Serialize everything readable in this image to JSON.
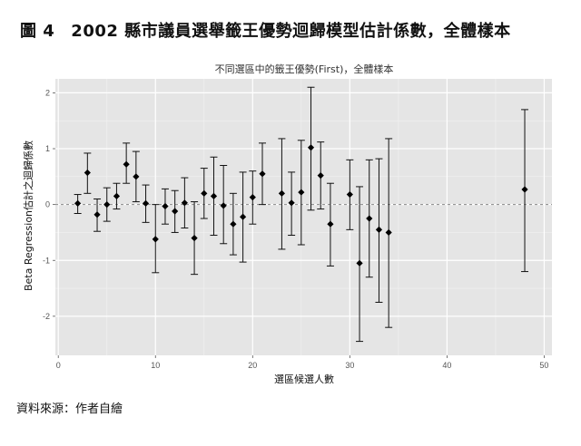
{
  "figure": {
    "number": "圖 4",
    "title": "2002 縣市議員選舉籤王優勢迴歸模型估計係數，全體樣本",
    "source": "資料來源：作者自繪"
  },
  "chart_data": {
    "type": "scatter",
    "title": "不同選區中的籤王優勢(First)，全體樣本",
    "xlabel": "選區候選人數",
    "ylabel": "Beta Regression估計之迴歸係數",
    "xlim": [
      -0.3,
      50.8
    ],
    "ylim": [
      -2.7,
      2.25
    ],
    "x_ticks": [
      0,
      10,
      20,
      30,
      40,
      50
    ],
    "y_ticks": [
      -2,
      -1,
      0,
      1,
      2
    ],
    "y_tick_labels": [
      "-2",
      "-1",
      "0",
      "1",
      "2"
    ],
    "reference_line": 0,
    "grid": true,
    "points": [
      {
        "x": 2,
        "y": 0.02,
        "lo": -0.16,
        "hi": 0.18
      },
      {
        "x": 3,
        "y": 0.57,
        "lo": 0.2,
        "hi": 0.92
      },
      {
        "x": 4,
        "y": -0.18,
        "lo": -0.48,
        "hi": 0.1
      },
      {
        "x": 5,
        "y": 0.0,
        "lo": -0.3,
        "hi": 0.3
      },
      {
        "x": 6,
        "y": 0.15,
        "lo": -0.08,
        "hi": 0.38
      },
      {
        "x": 7,
        "y": 0.72,
        "lo": 0.38,
        "hi": 1.1
      },
      {
        "x": 8,
        "y": 0.5,
        "lo": 0.05,
        "hi": 0.95
      },
      {
        "x": 9,
        "y": 0.02,
        "lo": -0.32,
        "hi": 0.35
      },
      {
        "x": 10,
        "y": -0.62,
        "lo": -1.22,
        "hi": 0.0
      },
      {
        "x": 11,
        "y": -0.03,
        "lo": -0.35,
        "hi": 0.28
      },
      {
        "x": 12,
        "y": -0.12,
        "lo": -0.5,
        "hi": 0.25
      },
      {
        "x": 13,
        "y": 0.03,
        "lo": -0.42,
        "hi": 0.48
      },
      {
        "x": 14,
        "y": -0.6,
        "lo": -1.25,
        "hi": 0.05
      },
      {
        "x": 15,
        "y": 0.2,
        "lo": -0.25,
        "hi": 0.65
      },
      {
        "x": 16,
        "y": 0.15,
        "lo": -0.55,
        "hi": 0.85
      },
      {
        "x": 17,
        "y": -0.02,
        "lo": -0.7,
        "hi": 0.7
      },
      {
        "x": 18,
        "y": -0.35,
        "lo": -0.9,
        "hi": 0.2
      },
      {
        "x": 19,
        "y": -0.22,
        "lo": -1.03,
        "hi": 0.58
      },
      {
        "x": 20,
        "y": 0.13,
        "lo": -0.35,
        "hi": 0.6
      },
      {
        "x": 21,
        "y": 0.55,
        "lo": 0.0,
        "hi": 1.1
      },
      {
        "x": 23,
        "y": 0.2,
        "lo": -0.8,
        "hi": 1.18
      },
      {
        "x": 24,
        "y": 0.03,
        "lo": -0.55,
        "hi": 0.58
      },
      {
        "x": 25,
        "y": 0.22,
        "lo": -0.72,
        "hi": 1.15
      },
      {
        "x": 26,
        "y": 1.02,
        "lo": -0.1,
        "hi": 2.1
      },
      {
        "x": 27,
        "y": 0.52,
        "lo": -0.08,
        "hi": 1.12
      },
      {
        "x": 28,
        "y": -0.35,
        "lo": -1.1,
        "hi": 0.38
      },
      {
        "x": 30,
        "y": 0.18,
        "lo": -0.45,
        "hi": 0.8
      },
      {
        "x": 31,
        "y": -1.05,
        "lo": -2.45,
        "hi": 0.32
      },
      {
        "x": 32,
        "y": -0.25,
        "lo": -1.3,
        "hi": 0.8
      },
      {
        "x": 33,
        "y": -0.45,
        "lo": -1.75,
        "hi": 0.82
      },
      {
        "x": 34,
        "y": -0.5,
        "lo": -2.2,
        "hi": 1.18
      },
      {
        "x": 48,
        "y": 0.27,
        "lo": -1.2,
        "hi": 1.7
      }
    ]
  }
}
